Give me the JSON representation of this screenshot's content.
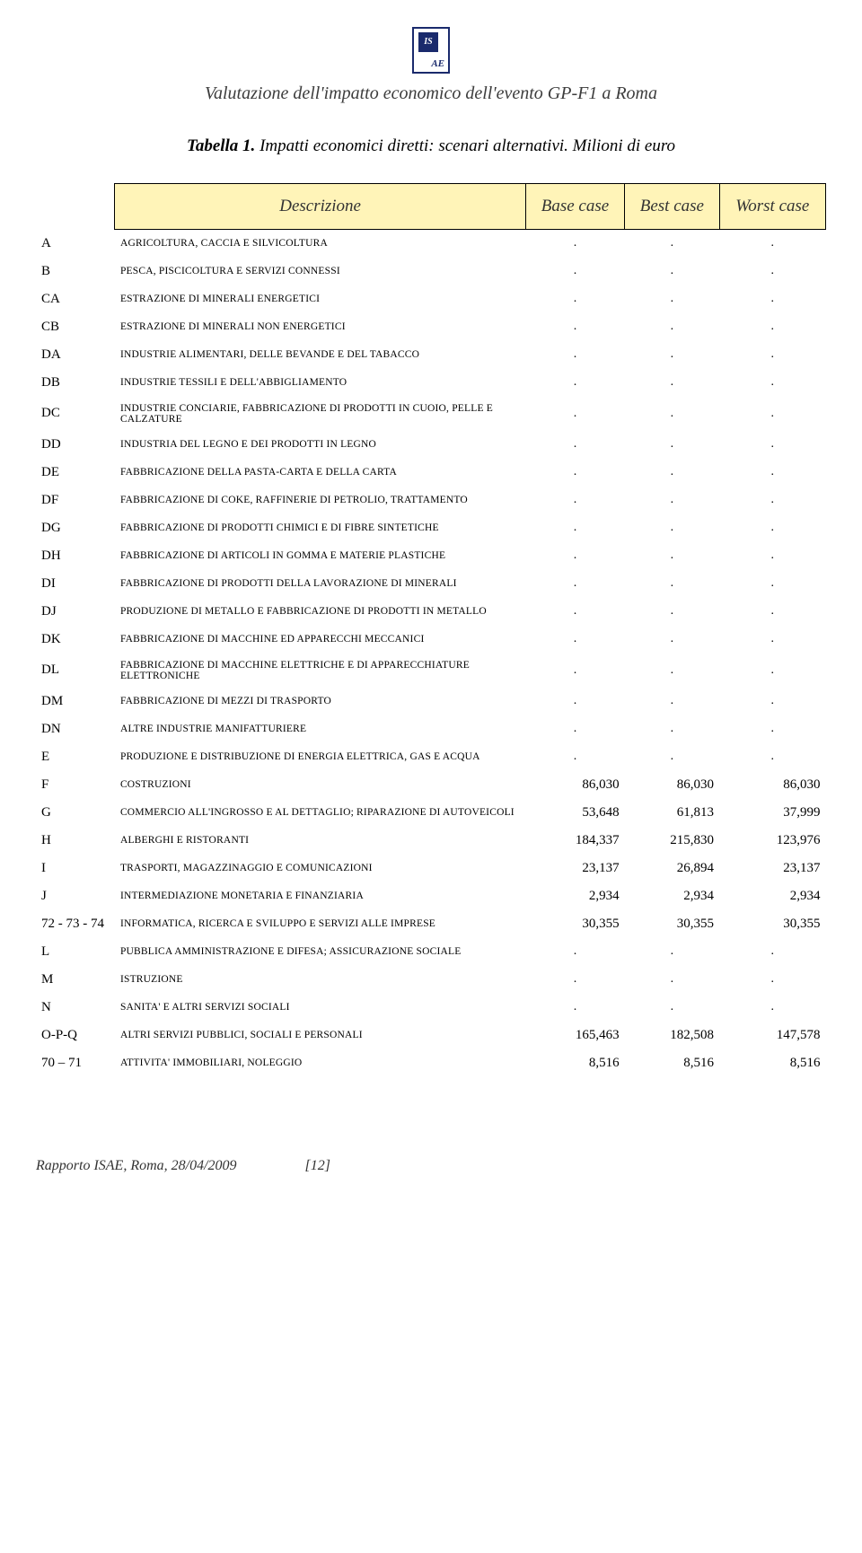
{
  "logo": {
    "top": "IS",
    "bottom": "AE"
  },
  "doc_title": "Valutazione dell'impatto economico dell'evento GP-F1 a Roma",
  "caption_bold": "Tabella 1.",
  "caption_rest": " Impatti economici diretti: scenari alternativi. Milioni di euro",
  "headers": {
    "desc": "Descrizione",
    "c1": "Base case",
    "c2": "Best case",
    "c3": "Worst case"
  },
  "rows": [
    {
      "code": "A",
      "desc": "AGRICOLTURA, CACCIA E SILVICOLTURA",
      "v": [
        ".",
        ".",
        "."
      ]
    },
    {
      "code": "B",
      "desc": "PESCA, PISCICOLTURA E SERVIZI CONNESSI",
      "v": [
        ".",
        ".",
        "."
      ]
    },
    {
      "code": "CA",
      "desc": "ESTRAZIONE DI MINERALI ENERGETICI",
      "v": [
        ".",
        ".",
        "."
      ]
    },
    {
      "code": "CB",
      "desc": "ESTRAZIONE DI MINERALI NON ENERGETICI",
      "v": [
        ".",
        ".",
        "."
      ]
    },
    {
      "code": "DA",
      "desc": "INDUSTRIE ALIMENTARI, DELLE BEVANDE E DEL TABACCO",
      "v": [
        ".",
        ".",
        "."
      ]
    },
    {
      "code": "DB",
      "desc": "INDUSTRIE TESSILI E DELL'ABBIGLIAMENTO",
      "v": [
        ".",
        ".",
        "."
      ]
    },
    {
      "code": "DC",
      "desc": "INDUSTRIE CONCIARIE, FABBRICAZIONE DI PRODOTTI IN CUOIO, PELLE E CALZATURE",
      "v": [
        ".",
        ".",
        "."
      ]
    },
    {
      "code": "DD",
      "desc": "INDUSTRIA DEL LEGNO E DEI PRODOTTI IN LEGNO",
      "v": [
        ".",
        ".",
        "."
      ]
    },
    {
      "code": "DE",
      "desc": "FABBRICAZIONE DELLA PASTA-CARTA E DELLA CARTA",
      "v": [
        ".",
        ".",
        "."
      ]
    },
    {
      "code": "DF",
      "desc": "FABBRICAZIONE DI COKE, RAFFINERIE DI PETROLIO, TRATTAMENTO",
      "v": [
        ".",
        ".",
        "."
      ]
    },
    {
      "code": "DG",
      "desc": "FABBRICAZIONE DI PRODOTTI CHIMICI E DI FIBRE SINTETICHE",
      "v": [
        ".",
        ".",
        "."
      ]
    },
    {
      "code": "DH",
      "desc": "FABBRICAZIONE DI ARTICOLI IN GOMMA E MATERIE PLASTICHE",
      "v": [
        ".",
        ".",
        "."
      ]
    },
    {
      "code": "DI",
      "desc": "FABBRICAZIONE DI PRODOTTI DELLA LAVORAZIONE DI MINERALI",
      "v": [
        ".",
        ".",
        "."
      ]
    },
    {
      "code": "DJ",
      "desc": "PRODUZIONE DI METALLO E FABBRICAZIONE DI PRODOTTI IN METALLO",
      "v": [
        ".",
        ".",
        "."
      ]
    },
    {
      "code": "DK",
      "desc": "FABBRICAZIONE DI MACCHINE ED APPARECCHI MECCANICI",
      "v": [
        ".",
        ".",
        "."
      ]
    },
    {
      "code": "DL",
      "desc": "FABBRICAZIONE DI MACCHINE ELETTRICHE E DI APPARECCHIATURE ELETTRONICHE",
      "v": [
        ".",
        ".",
        "."
      ]
    },
    {
      "code": "DM",
      "desc": "FABBRICAZIONE DI MEZZI DI TRASPORTO",
      "v": [
        ".",
        ".",
        "."
      ]
    },
    {
      "code": "DN",
      "desc": "ALTRE INDUSTRIE MANIFATTURIERE",
      "v": [
        ".",
        ".",
        "."
      ]
    },
    {
      "code": "E",
      "desc": "PRODUZIONE E DISTRIBUZIONE DI ENERGIA ELETTRICA, GAS E ACQUA",
      "v": [
        ".",
        ".",
        "."
      ]
    },
    {
      "code": "F",
      "desc": "COSTRUZIONI",
      "v": [
        "86,030",
        "86,030",
        "86,030"
      ]
    },
    {
      "code": "G",
      "desc": "COMMERCIO ALL'INGROSSO E AL DETTAGLIO; RIPARAZIONE DI AUTOVEICOLI",
      "v": [
        "53,648",
        "61,813",
        "37,999"
      ]
    },
    {
      "code": "H",
      "desc": "ALBERGHI E RISTORANTI",
      "v": [
        "184,337",
        "215,830",
        "123,976"
      ]
    },
    {
      "code": "I",
      "desc": "TRASPORTI, MAGAZZINAGGIO E COMUNICAZIONI",
      "v": [
        "23,137",
        "26,894",
        "23,137"
      ]
    },
    {
      "code": "J",
      "desc": "INTERMEDIAZIONE MONETARIA E FINANZIARIA",
      "v": [
        "2,934",
        "2,934",
        "2,934"
      ]
    },
    {
      "code": "72 - 73 - 74",
      "desc": "INFORMATICA, RICERCA E SVILUPPO E SERVIZI ALLE IMPRESE",
      "v": [
        "30,355",
        "30,355",
        "30,355"
      ]
    },
    {
      "code": "L",
      "desc": "PUBBLICA AMMINISTRAZIONE E DIFESA; ASSICURAZIONE SOCIALE",
      "v": [
        ".",
        ".",
        "."
      ]
    },
    {
      "code": "M",
      "desc": "ISTRUZIONE",
      "v": [
        ".",
        ".",
        "."
      ]
    },
    {
      "code": "N",
      "desc": "SANITA' E ALTRI SERVIZI SOCIALI",
      "v": [
        ".",
        ".",
        "."
      ]
    },
    {
      "code": "O-P-Q",
      "desc": "ALTRI SERVIZI PUBBLICI, SOCIALI E PERSONALI",
      "v": [
        "165,463",
        "182,508",
        "147,578"
      ]
    },
    {
      "code": "70 – 71",
      "desc": "ATTIVITA' IMMOBILIARI, NOLEGGIO",
      "v": [
        "8,516",
        "8,516",
        "8,516"
      ]
    }
  ],
  "footer_left": "Rapporto ISAE, Roma, 28/04/2009",
  "footer_page": "[12]",
  "colors": {
    "header_bg": "#fff4b8",
    "border": "#000000",
    "text": "#000000",
    "logo": "#1a2a6c"
  }
}
